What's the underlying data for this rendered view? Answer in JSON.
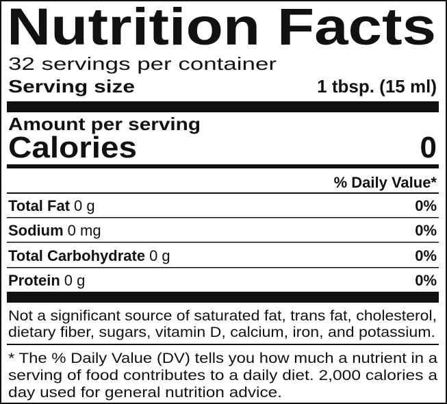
{
  "title": "Nutrition Facts",
  "servings": "32 servings per container",
  "serving_size": {
    "label": "Serving size",
    "value": "1 tbsp. (15 ml)"
  },
  "amount_per_serving": "Amount per serving",
  "calories": {
    "label": "Calories",
    "value": "0"
  },
  "dv_header": "% Daily Value*",
  "nutrients": [
    {
      "name": "Total Fat",
      "amount": "0 g",
      "dv": "0%"
    },
    {
      "name": "Sodium",
      "amount": "0 mg",
      "dv": "0%"
    },
    {
      "name": "Total Carbohydrate",
      "amount": "0 g",
      "dv": "0%"
    },
    {
      "name": "Protein",
      "amount": "0 g",
      "dv": "0%"
    }
  ],
  "footnote_1": [
    "Not a significant source of saturated fat, trans fat, cholesterol,",
    "dietary fiber, sugars, vitamin D, calcium, iron, and potassium."
  ],
  "footnote_2": [
    "* The % Daily Value (DV) tells you how much a nutrient in a",
    "serving of food contributes to a daily diet. 2,000 calories a",
    "day used for general nutrition advice."
  ]
}
